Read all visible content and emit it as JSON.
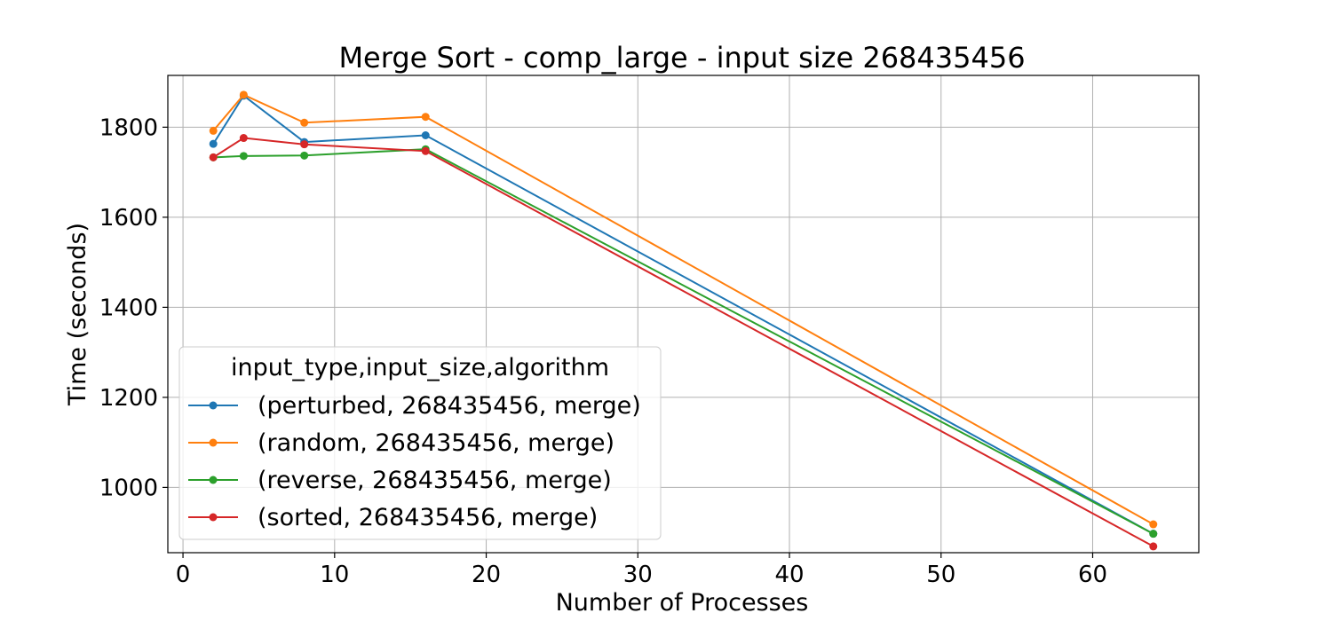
{
  "chart_data": {
    "type": "line",
    "title": "Merge Sort - comp_large - input size 268435456",
    "xlabel": "Number of Processes",
    "ylabel": "Time (seconds)",
    "xlim": [
      -1,
      67
    ],
    "ylim": [
      855,
      1915
    ],
    "x_ticks": [
      0,
      10,
      20,
      30,
      40,
      50,
      60
    ],
    "y_ticks": [
      1000,
      1200,
      1400,
      1600,
      1800
    ],
    "grid": true,
    "legend": {
      "title": "input_type,input_size,algorithm",
      "placement": "lower-left"
    },
    "x": [
      2,
      4,
      8,
      16,
      64
    ],
    "series": [
      {
        "name": "(perturbed, 268435456, merge)",
        "color": "#1f77b4",
        "values": [
          1763,
          1870,
          1767,
          1782,
          897
        ]
      },
      {
        "name": "(random, 268435456, merge)",
        "color": "#ff7f0e",
        "values": [
          1792,
          1872,
          1810,
          1823,
          918
        ]
      },
      {
        "name": "(reverse, 268435456, merge)",
        "color": "#2ca02c",
        "values": [
          1733,
          1736,
          1737,
          1751,
          897
        ]
      },
      {
        "name": "(sorted, 268435456, merge)",
        "color": "#d62728",
        "values": [
          1733,
          1776,
          1762,
          1747,
          869
        ]
      }
    ]
  }
}
